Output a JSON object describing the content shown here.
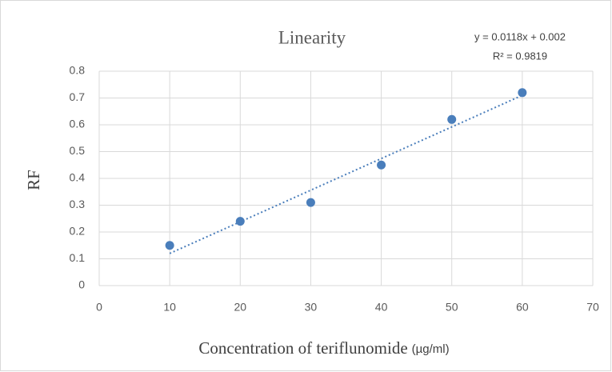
{
  "chart_data": {
    "type": "scatter",
    "title": "Linearity",
    "x_label": "Concentration of teriflunomide",
    "x_label_unit": "(µg/ml)",
    "y_label": "RF",
    "series": [
      {
        "color": "#4a7ebb",
        "x": [
          10,
          20,
          30,
          40,
          50,
          60
        ],
        "values": [
          0.15,
          0.24,
          0.31,
          0.45,
          0.62,
          0.72
        ]
      }
    ],
    "trendline": {
      "slope": 0.0118,
      "intercept": 0.002,
      "equation": "y = 0.0118x + 0.002",
      "r2": "R² = 0.9819",
      "color": "#4a7ebb"
    },
    "xlim": [
      0,
      70
    ],
    "xticks": [
      0,
      10,
      20,
      30,
      40,
      50,
      60,
      70
    ],
    "ylim": [
      0,
      0.8
    ],
    "yticks": [
      0,
      0.1,
      0.2,
      0.3,
      0.4,
      0.5,
      0.6,
      0.7,
      0.8
    ],
    "grid": true
  }
}
